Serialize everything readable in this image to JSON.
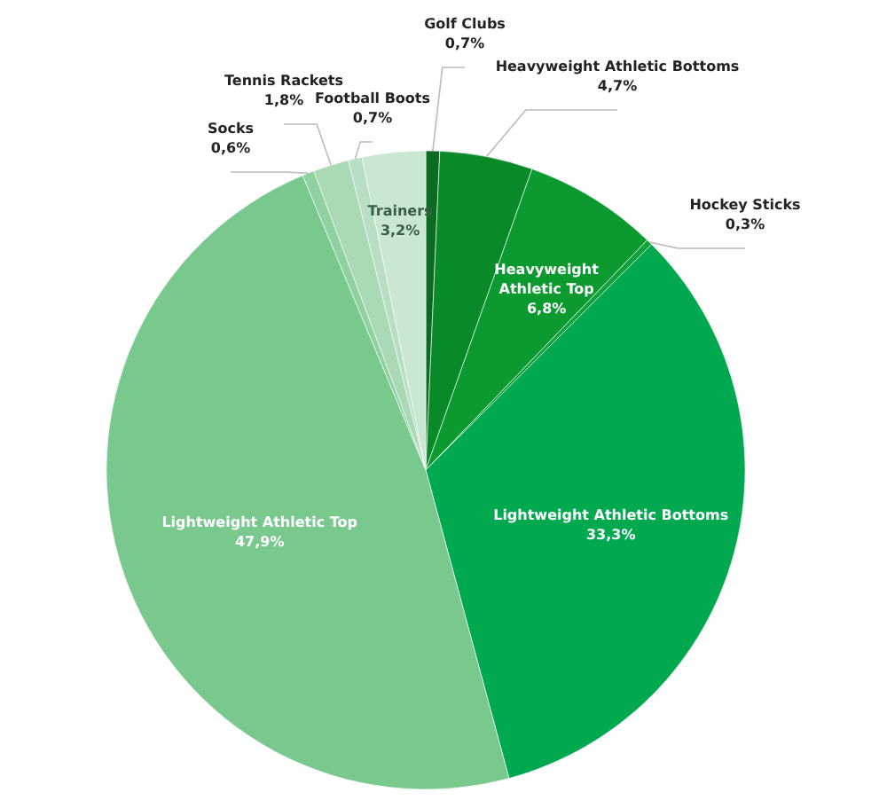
{
  "chart_data": {
    "type": "pie",
    "categories": [
      "Golf Clubs",
      "Heavyweight Athletic Bottoms",
      "Heavyweight Athletic Top",
      "Hockey Sticks",
      "Lightweight Athletic Bottoms",
      "Lightweight Athletic Top",
      "Socks",
      "Tennis Rackets",
      "Football Boots",
      "Trainers"
    ],
    "values": [
      0.7,
      4.7,
      6.8,
      0.3,
      33.3,
      47.9,
      0.6,
      1.8,
      0.7,
      3.2
    ],
    "value_labels": [
      "0,7%",
      "4,7%",
      "6,8%",
      "0,3%",
      "33,3%",
      "47,9%",
      "0,6%",
      "1,8%",
      "0,7%",
      "3,2%"
    ],
    "colors": [
      "#0b6b20",
      "#088a28",
      "#0c9a30",
      "#10a33a",
      "#00a84f",
      "#79c98f",
      "#90d1a2",
      "#a9d9b5",
      "#b9dfc3",
      "#c9e7d1"
    ]
  }
}
